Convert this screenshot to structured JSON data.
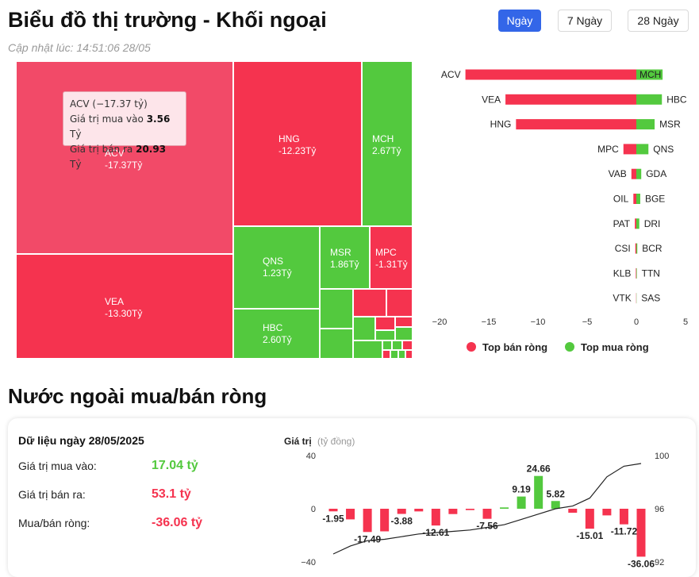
{
  "header": {
    "title": "Biểu đồ thị trường - Khối ngoại",
    "updated": "Cập nhật lúc: 14:51:06 28/05",
    "tabs": [
      "Ngày",
      "7 Ngày",
      "28 Ngày"
    ],
    "active_tab": "Ngày"
  },
  "colors": {
    "sell": "#f5334f",
    "buy": "#53c93e",
    "accent": "#3366e8",
    "tooltip_cell": "#f24a68"
  },
  "treemap": {
    "cells": [
      {
        "code": "ACV",
        "value": "-17.37Tỷ",
        "side": "sell"
      },
      {
        "code": "VEA",
        "value": "-13.30Tỷ",
        "side": "sell"
      },
      {
        "code": "HNG",
        "value": "-12.23Tỷ",
        "side": "sell"
      },
      {
        "code": "MCH",
        "value": "2.67Tỷ",
        "side": "buy"
      },
      {
        "code": "QNS",
        "value": "1.23Tỷ",
        "side": "buy"
      },
      {
        "code": "HBC",
        "value": "2.60Tỷ",
        "side": "buy"
      },
      {
        "code": "MSR",
        "value": "1.86Tỷ",
        "side": "buy"
      },
      {
        "code": "MPC",
        "value": "-1.31Tỷ",
        "side": "sell"
      }
    ],
    "tooltip": {
      "title": "ACV (−17.37 tỷ)",
      "buy_label": "Giá trị mua vào",
      "buy_value": "3.56",
      "buy_unit": "Tỷ",
      "sell_label": "Giá trị bán ra",
      "sell_value": "20.93",
      "sell_unit": "Tỷ"
    }
  },
  "chart_data": [
    {
      "type": "bar",
      "orientation": "horizontal",
      "xlim": [
        -20,
        5
      ],
      "xticks": [
        -20,
        -15,
        -10,
        -5,
        0,
        5
      ],
      "grid": false,
      "legend": "bottom",
      "series": [
        {
          "name": "Top bán ròng",
          "categories": [
            "ACV",
            "VEA",
            "HNG",
            "MPC",
            "VAB",
            "OIL",
            "PAT",
            "CSI",
            "KLB",
            "VTK"
          ],
          "values": [
            -17.37,
            -13.3,
            -12.23,
            -1.31,
            -0.5,
            -0.3,
            -0.15,
            -0.1,
            -0.05,
            -0.02
          ]
        },
        {
          "name": "Top mua ròng",
          "categories": [
            "MCH",
            "HBC",
            "MSR",
            "QNS",
            "GDA",
            "BGE",
            "DRI",
            "BCR",
            "TTN",
            "SAS"
          ],
          "values": [
            2.67,
            2.6,
            1.86,
            1.23,
            0.5,
            0.4,
            0.3,
            0.1,
            0.05,
            0.02
          ]
        }
      ]
    },
    {
      "type": "bar",
      "ylabel": "Giá trị",
      "yunit": "(tỷ đồng)",
      "ylim": [
        -40,
        40
      ],
      "yticks": [
        40,
        0,
        -40
      ],
      "y2lim": [
        92,
        100
      ],
      "y2ticks": [
        100,
        96,
        92
      ],
      "grid": false,
      "series": [
        {
          "values": [
            -1.95,
            -8,
            -17.49,
            -17,
            -3.88,
            -2,
            -12.61,
            -4,
            -1,
            -7.56,
            1,
            9.19,
            24.66,
            5.82,
            -3,
            -15.01,
            -5,
            -11.72,
            -36.06
          ],
          "labels": [
            "-1.95",
            "",
            "-17.49",
            "",
            "-3.88",
            "",
            "-12.61",
            "",
            "",
            "-7.56",
            "",
            "9.19",
            "24.66",
            "5.82",
            "",
            "-15.01",
            "",
            "-11.72",
            "-36.06"
          ]
        },
        {
          "type": "line",
          "axis": "right",
          "values": [
            92.6,
            93.2,
            93.6,
            93.7,
            93.9,
            94.1,
            94.2,
            94.3,
            94.4,
            94.6,
            94.8,
            95.2,
            95.6,
            96.0,
            96.2,
            96.8,
            98.4,
            99.2,
            99.4
          ]
        }
      ]
    }
  ],
  "summary": {
    "heading": "Nước ngoài mua/bán ròng",
    "date_label": "Dữ liệu ngày 28/05/2025",
    "rows": [
      {
        "label": "Giá trị mua vào:",
        "value": "17.04 tỷ",
        "color": "#53c93e"
      },
      {
        "label": "Giá trị bán ra:",
        "value": "53.1 tỷ",
        "color": "#f5334f"
      },
      {
        "label": "Mua/bán ròng:",
        "value": "-36.06 tỷ",
        "color": "#f5334f"
      }
    ]
  }
}
